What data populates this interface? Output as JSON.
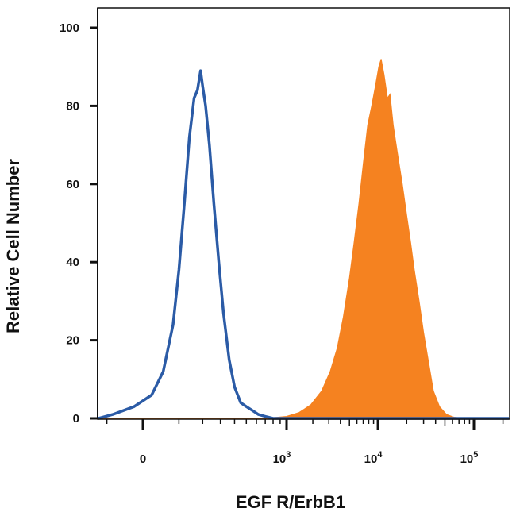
{
  "chart_data": {
    "type": "area",
    "xlabel": "EGF R/ErbB1",
    "ylabel": "Relative Cell Number",
    "x_scale": "biexponential",
    "ylim": [
      0,
      100
    ],
    "y_ticks": [
      0,
      20,
      40,
      60,
      80,
      100
    ],
    "x_ticks": [
      {
        "value": 0,
        "base": "0",
        "exp": ""
      },
      {
        "value": 1000,
        "base": "10",
        "exp": "3"
      },
      {
        "value": 10000,
        "base": "10",
        "exp": "4"
      },
      {
        "value": 100000,
        "base": "10",
        "exp": "5"
      }
    ],
    "grid": false,
    "legend": "none",
    "series": [
      {
        "style": "outline",
        "color": "#2b5ba6",
        "points": [
          [
            -300,
            0
          ],
          [
            -150,
            0
          ],
          [
            -80,
            1
          ],
          [
            -20,
            3
          ],
          [
            20,
            6
          ],
          [
            50,
            12
          ],
          [
            80,
            24
          ],
          [
            100,
            38
          ],
          [
            120,
            55
          ],
          [
            140,
            72
          ],
          [
            160,
            82
          ],
          [
            175,
            84
          ],
          [
            190,
            89
          ],
          [
            200,
            85
          ],
          [
            215,
            80
          ],
          [
            235,
            70
          ],
          [
            260,
            55
          ],
          [
            290,
            40
          ],
          [
            320,
            27
          ],
          [
            360,
            15
          ],
          [
            400,
            8
          ],
          [
            450,
            4
          ],
          [
            500,
            3
          ],
          [
            560,
            2
          ],
          [
            620,
            1
          ],
          [
            700,
            0.5
          ],
          [
            800,
            0
          ],
          [
            3000000,
            0
          ]
        ]
      },
      {
        "style": "filled",
        "color": "#f58220",
        "points": [
          [
            -300,
            0
          ],
          [
            700,
            0
          ],
          [
            1000,
            0.5
          ],
          [
            1400,
            1.5
          ],
          [
            1900,
            3.5
          ],
          [
            2500,
            7
          ],
          [
            3100,
            12
          ],
          [
            3700,
            18
          ],
          [
            4300,
            26
          ],
          [
            5000,
            36
          ],
          [
            5600,
            45
          ],
          [
            6300,
            55
          ],
          [
            7000,
            65
          ],
          [
            7800,
            75
          ],
          [
            8600,
            80
          ],
          [
            9400,
            85
          ],
          [
            10200,
            90
          ],
          [
            10800,
            92
          ],
          [
            11600,
            88
          ],
          [
            12600,
            82
          ],
          [
            13400,
            83
          ],
          [
            14500,
            75
          ],
          [
            16000,
            68
          ],
          [
            18000,
            60
          ],
          [
            20000,
            52
          ],
          [
            22000,
            45
          ],
          [
            24000,
            38
          ],
          [
            27000,
            30
          ],
          [
            30000,
            22
          ],
          [
            34000,
            14
          ],
          [
            38000,
            7
          ],
          [
            44000,
            3
          ],
          [
            52000,
            1
          ],
          [
            62000,
            0.3
          ],
          [
            80000,
            0
          ],
          [
            3000000,
            0
          ]
        ]
      }
    ]
  }
}
